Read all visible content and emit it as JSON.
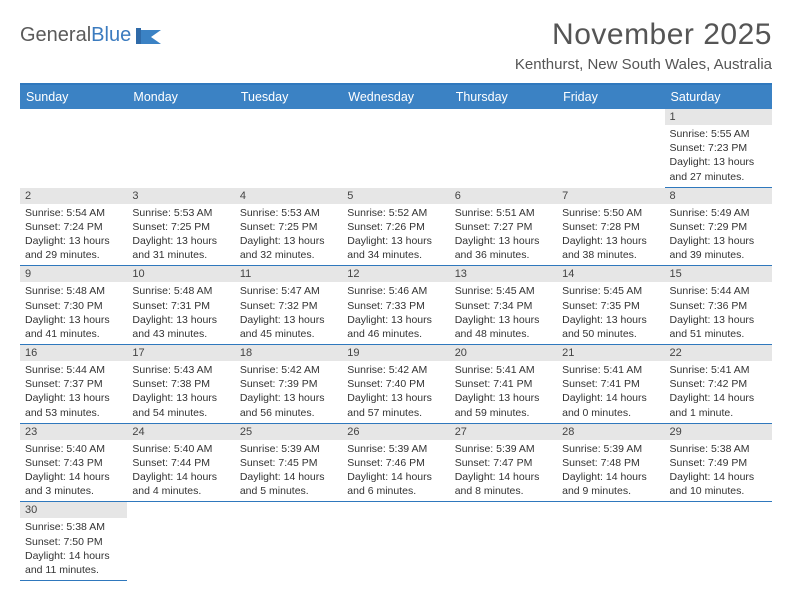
{
  "logo": {
    "word1": "General",
    "word2": "Blue"
  },
  "title": "November 2025",
  "location": "Kenthurst, New South Wales, Australia",
  "header_color": "#3b82c4",
  "border_color": "#2f78bd",
  "daynum_bg": "#e6e6e6",
  "font_family": "Arial",
  "days_of_week": [
    "Sunday",
    "Monday",
    "Tuesday",
    "Wednesday",
    "Thursday",
    "Friday",
    "Saturday"
  ],
  "weeks": [
    {
      "nums": [
        "",
        "",
        "",
        "",
        "",
        "",
        "1"
      ],
      "cells": [
        null,
        null,
        null,
        null,
        null,
        null,
        {
          "sunrise": "5:55 AM",
          "sunset": "7:23 PM",
          "daylight": "13 hours and 27 minutes."
        }
      ]
    },
    {
      "nums": [
        "2",
        "3",
        "4",
        "5",
        "6",
        "7",
        "8"
      ],
      "cells": [
        {
          "sunrise": "5:54 AM",
          "sunset": "7:24 PM",
          "daylight": "13 hours and 29 minutes."
        },
        {
          "sunrise": "5:53 AM",
          "sunset": "7:25 PM",
          "daylight": "13 hours and 31 minutes."
        },
        {
          "sunrise": "5:53 AM",
          "sunset": "7:25 PM",
          "daylight": "13 hours and 32 minutes."
        },
        {
          "sunrise": "5:52 AM",
          "sunset": "7:26 PM",
          "daylight": "13 hours and 34 minutes."
        },
        {
          "sunrise": "5:51 AM",
          "sunset": "7:27 PM",
          "daylight": "13 hours and 36 minutes."
        },
        {
          "sunrise": "5:50 AM",
          "sunset": "7:28 PM",
          "daylight": "13 hours and 38 minutes."
        },
        {
          "sunrise": "5:49 AM",
          "sunset": "7:29 PM",
          "daylight": "13 hours and 39 minutes."
        }
      ]
    },
    {
      "nums": [
        "9",
        "10",
        "11",
        "12",
        "13",
        "14",
        "15"
      ],
      "cells": [
        {
          "sunrise": "5:48 AM",
          "sunset": "7:30 PM",
          "daylight": "13 hours and 41 minutes."
        },
        {
          "sunrise": "5:48 AM",
          "sunset": "7:31 PM",
          "daylight": "13 hours and 43 minutes."
        },
        {
          "sunrise": "5:47 AM",
          "sunset": "7:32 PM",
          "daylight": "13 hours and 45 minutes."
        },
        {
          "sunrise": "5:46 AM",
          "sunset": "7:33 PM",
          "daylight": "13 hours and 46 minutes."
        },
        {
          "sunrise": "5:45 AM",
          "sunset": "7:34 PM",
          "daylight": "13 hours and 48 minutes."
        },
        {
          "sunrise": "5:45 AM",
          "sunset": "7:35 PM",
          "daylight": "13 hours and 50 minutes."
        },
        {
          "sunrise": "5:44 AM",
          "sunset": "7:36 PM",
          "daylight": "13 hours and 51 minutes."
        }
      ]
    },
    {
      "nums": [
        "16",
        "17",
        "18",
        "19",
        "20",
        "21",
        "22"
      ],
      "cells": [
        {
          "sunrise": "5:44 AM",
          "sunset": "7:37 PM",
          "daylight": "13 hours and 53 minutes."
        },
        {
          "sunrise": "5:43 AM",
          "sunset": "7:38 PM",
          "daylight": "13 hours and 54 minutes."
        },
        {
          "sunrise": "5:42 AM",
          "sunset": "7:39 PM",
          "daylight": "13 hours and 56 minutes."
        },
        {
          "sunrise": "5:42 AM",
          "sunset": "7:40 PM",
          "daylight": "13 hours and 57 minutes."
        },
        {
          "sunrise": "5:41 AM",
          "sunset": "7:41 PM",
          "daylight": "13 hours and 59 minutes."
        },
        {
          "sunrise": "5:41 AM",
          "sunset": "7:41 PM",
          "daylight": "14 hours and 0 minutes."
        },
        {
          "sunrise": "5:41 AM",
          "sunset": "7:42 PM",
          "daylight": "14 hours and 1 minute."
        }
      ]
    },
    {
      "nums": [
        "23",
        "24",
        "25",
        "26",
        "27",
        "28",
        "29"
      ],
      "cells": [
        {
          "sunrise": "5:40 AM",
          "sunset": "7:43 PM",
          "daylight": "14 hours and 3 minutes."
        },
        {
          "sunrise": "5:40 AM",
          "sunset": "7:44 PM",
          "daylight": "14 hours and 4 minutes."
        },
        {
          "sunrise": "5:39 AM",
          "sunset": "7:45 PM",
          "daylight": "14 hours and 5 minutes."
        },
        {
          "sunrise": "5:39 AM",
          "sunset": "7:46 PM",
          "daylight": "14 hours and 6 minutes."
        },
        {
          "sunrise": "5:39 AM",
          "sunset": "7:47 PM",
          "daylight": "14 hours and 8 minutes."
        },
        {
          "sunrise": "5:39 AM",
          "sunset": "7:48 PM",
          "daylight": "14 hours and 9 minutes."
        },
        {
          "sunrise": "5:38 AM",
          "sunset": "7:49 PM",
          "daylight": "14 hours and 10 minutes."
        }
      ]
    },
    {
      "nums": [
        "30",
        "",
        "",
        "",
        "",
        "",
        ""
      ],
      "cells": [
        {
          "sunrise": "5:38 AM",
          "sunset": "7:50 PM",
          "daylight": "14 hours and 11 minutes."
        },
        null,
        null,
        null,
        null,
        null,
        null
      ]
    }
  ],
  "labels": {
    "sunrise": "Sunrise:",
    "sunset": "Sunset:",
    "daylight": "Daylight:"
  }
}
